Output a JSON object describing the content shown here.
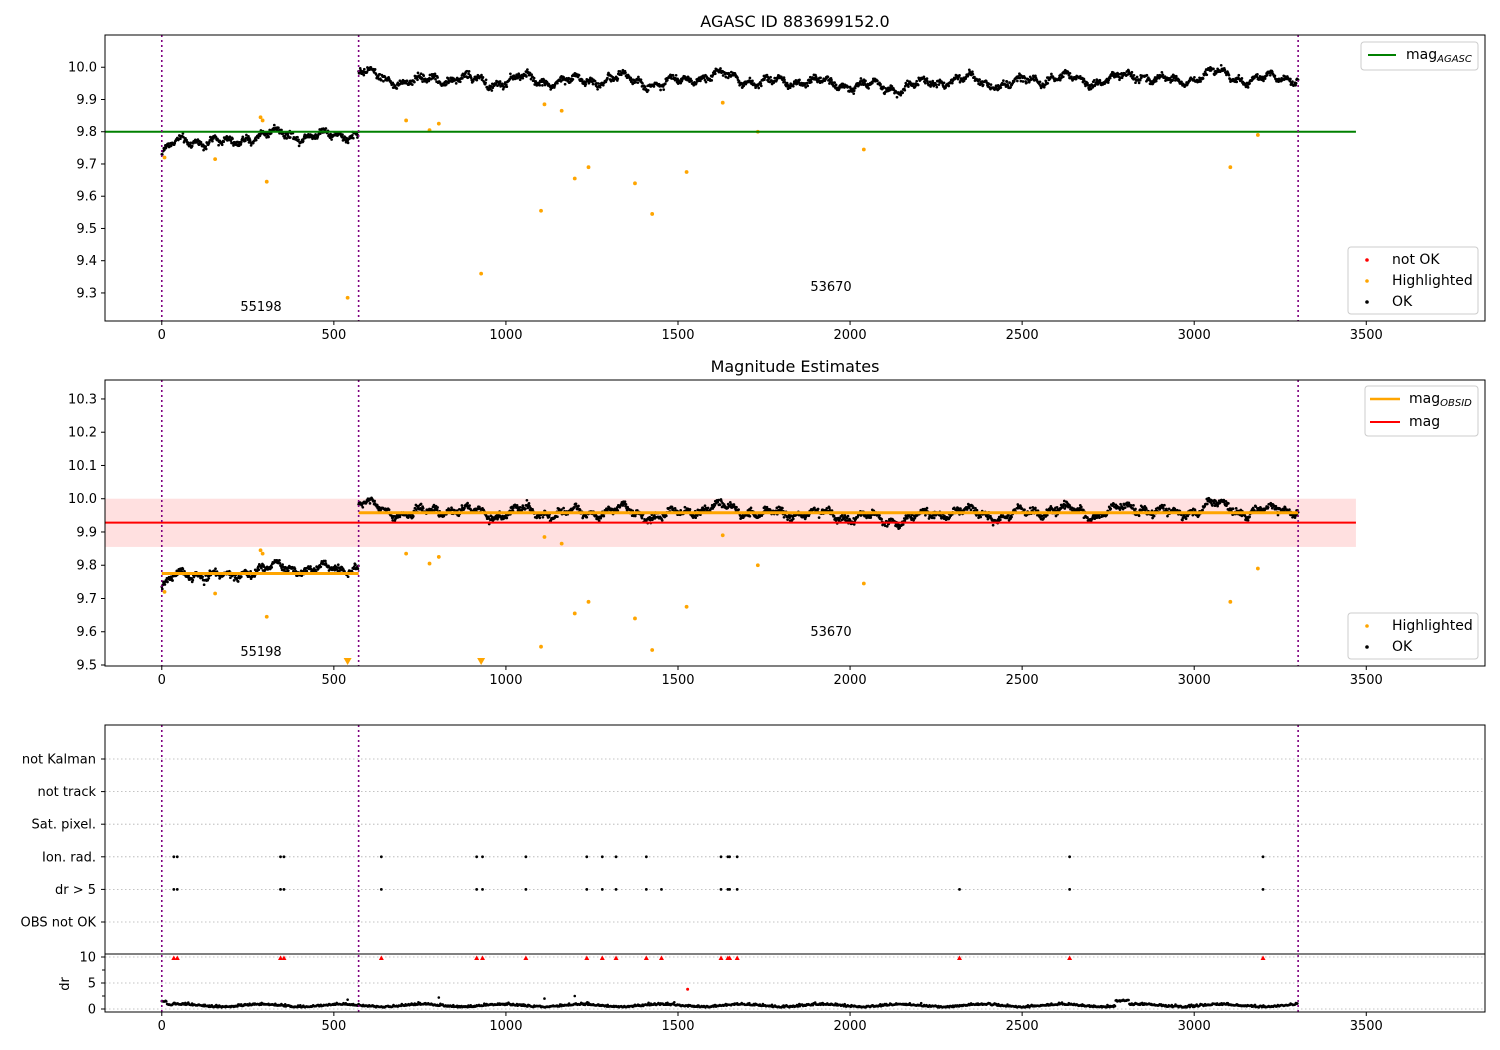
{
  "chart_data": [
    {
      "type": "scatter",
      "title": "AGASC ID 883699152.0",
      "xlim": [
        -165,
        3845
      ],
      "ylim": [
        9.213,
        10.1
      ],
      "xticks": [
        0,
        500,
        1000,
        1500,
        2000,
        2500,
        3000,
        3500
      ],
      "xtick_labels": [
        "0",
        "500",
        "1000",
        "1500",
        "2000",
        "2500",
        "3000",
        "3500"
      ],
      "yticks": [
        9.3,
        9.4,
        9.5,
        9.6,
        9.7,
        9.8,
        9.9,
        10.0
      ],
      "ytick_labels": [
        "9.3",
        "9.4",
        "9.5",
        "9.6",
        "9.7",
        "9.8",
        "9.9",
        "10.0"
      ],
      "obs_boundaries": [
        0,
        572,
        3302
      ],
      "obs_labels": [
        {
          "text": "55198",
          "x": 285,
          "y": 9.25
        },
        {
          "text": "53670",
          "x": 1937,
          "y": 9.3
        }
      ],
      "hlines": [
        {
          "name": "mag_AGASC",
          "y": 9.8,
          "x": [
            -165,
            3470
          ],
          "color": "#008000"
        }
      ],
      "series": [
        {
          "name": "not OK",
          "color": "#ff0000",
          "points": []
        },
        {
          "name": "Highlighted",
          "color": "#ffa500",
          "points": [
            [
              8,
              9.72
            ],
            [
              155,
              9.715
            ],
            [
              287,
              9.845
            ],
            [
              293,
              9.835
            ],
            [
              305,
              9.645
            ],
            [
              540,
              9.285
            ],
            [
              710,
              9.835
            ],
            [
              778,
              9.805
            ],
            [
              805,
              9.825
            ],
            [
              928,
              9.36
            ],
            [
              1102,
              9.555
            ],
            [
              1112,
              9.885
            ],
            [
              1162,
              9.865
            ],
            [
              1200,
              9.655
            ],
            [
              1240,
              9.69
            ],
            [
              1375,
              9.64
            ],
            [
              1425,
              9.545
            ],
            [
              1525,
              9.675
            ],
            [
              1630,
              9.89
            ],
            [
              1732,
              9.8
            ],
            [
              2040,
              9.745
            ],
            [
              3105,
              9.69
            ],
            [
              3185,
              9.79
            ]
          ]
        },
        {
          "name": "OK",
          "color": "#000000",
          "segments": [
            {
              "x0": 0,
              "x1": 572,
              "base": [
                [
                  0,
                  9.73
                ],
                [
                  40,
                  9.765
                ],
                [
                  100,
                  9.775
                ],
                [
                  150,
                  9.77
                ],
                [
                  200,
                  9.76
                ],
                [
                  250,
                  9.785
                ],
                [
                  300,
                  9.79
                ],
                [
                  350,
                  9.795
                ],
                [
                  400,
                  9.79
                ],
                [
                  450,
                  9.785
                ],
                [
                  500,
                  9.79
                ],
                [
                  572,
                  9.795
                ]
              ]
            },
            {
              "x0": 572,
              "x1": 3302,
              "base": [
                [
                  572,
                  9.99
                ],
                [
                  650,
                  9.96
                ],
                [
                  750,
                  9.955
                ],
                [
                  850,
                  9.97
                ],
                [
                  950,
                  9.95
                ],
                [
                  1050,
                  9.965
                ],
                [
                  1150,
                  9.955
                ],
                [
                  1250,
                  9.96
                ],
                [
                  1350,
                  9.965
                ],
                [
                  1450,
                  9.945
                ],
                [
                  1550,
                  9.97
                ],
                [
                  1650,
                  9.975
                ],
                [
                  1750,
                  9.95
                ],
                [
                  1850,
                  9.96
                ],
                [
                  2000,
                  9.945
                ],
                [
                  2150,
                  9.935
                ],
                [
                  2300,
                  9.965
                ],
                [
                  2450,
                  9.945
                ],
                [
                  2600,
                  9.97
                ],
                [
                  2700,
                  9.955
                ],
                [
                  2850,
                  9.975
                ],
                [
                  2950,
                  9.95
                ],
                [
                  3050,
                  9.985
                ],
                [
                  3150,
                  9.96
                ],
                [
                  3302,
                  9.97
                ]
              ]
            }
          ]
        }
      ],
      "legends": [
        {
          "items": [
            {
              "label": "mag",
              "sub": "AGASC",
              "color": "#008000",
              "kind": "line"
            }
          ]
        },
        {
          "items": [
            {
              "label": "not OK",
              "color": "#ff0000",
              "kind": "dot"
            },
            {
              "label": "Highlighted",
              "color": "#ffa500",
              "kind": "dot"
            },
            {
              "label": "OK",
              "color": "#000000",
              "kind": "dot"
            }
          ]
        }
      ]
    },
    {
      "type": "scatter",
      "title": "Magnitude Estimates",
      "xlim": [
        -165,
        3845
      ],
      "ylim": [
        9.497,
        10.357
      ],
      "xticks": [
        0,
        500,
        1000,
        1500,
        2000,
        2500,
        3000,
        3500
      ],
      "xtick_labels": [
        "0",
        "500",
        "1000",
        "1500",
        "2000",
        "2500",
        "3000",
        "3500"
      ],
      "yticks": [
        9.5,
        9.6,
        9.7,
        9.8,
        9.9,
        10.0,
        10.1,
        10.2,
        10.3
      ],
      "ytick_labels": [
        "9.5",
        "9.6",
        "9.7",
        "9.8",
        "9.9",
        "10.0",
        "10.1",
        "10.2",
        "10.3"
      ],
      "obs_boundaries": [
        0,
        572,
        3302
      ],
      "obs_labels": [
        {
          "text": "55198",
          "x": 285,
          "y": 9.53
        },
        {
          "text": "53670",
          "x": 1937,
          "y": 9.59
        }
      ],
      "band": {
        "y": [
          9.855,
          10.0
        ],
        "x": [
          -165,
          3470
        ],
        "color": "rgba(255,0,0,0.12)"
      },
      "hlines": [
        {
          "name": "mag",
          "y": 9.928,
          "x": [
            -165,
            3470
          ],
          "color": "#ff0000"
        },
        {
          "name": "mag_OBSID",
          "y": 9.775,
          "x": [
            0,
            572
          ],
          "color": "#ffa500"
        },
        {
          "name": "mag_OBSID",
          "y": 9.958,
          "x": [
            572,
            3302
          ],
          "color": "#ffa500"
        }
      ],
      "series": [
        {
          "name": "Highlighted",
          "color": "#ffa500",
          "points": [
            [
              8,
              9.72
            ],
            [
              155,
              9.715
            ],
            [
              287,
              9.845
            ],
            [
              293,
              9.835
            ],
            [
              305,
              9.645
            ],
            [
              710,
              9.835
            ],
            [
              778,
              9.805
            ],
            [
              805,
              9.825
            ],
            [
              1102,
              9.555
            ],
            [
              1112,
              9.885
            ],
            [
              1162,
              9.865
            ],
            [
              1200,
              9.655
            ],
            [
              1240,
              9.69
            ],
            [
              1375,
              9.64
            ],
            [
              1425,
              9.545
            ],
            [
              1525,
              9.675
            ],
            [
              1630,
              9.89
            ],
            [
              1732,
              9.8
            ],
            [
              2040,
              9.745
            ],
            [
              3105,
              9.69
            ],
            [
              3185,
              9.79
            ]
          ]
        },
        {
          "name": "Highlighted (below range)",
          "color": "#ffa500",
          "marker": "triangle-down",
          "points": [
            [
              540,
              9.503
            ],
            [
              928,
              9.503
            ]
          ]
        },
        {
          "name": "OK",
          "color": "#000000",
          "segments": [
            {
              "x0": 0,
              "x1": 572,
              "base": [
                [
                  0,
                  9.73
                ],
                [
                  40,
                  9.765
                ],
                [
                  100,
                  9.775
                ],
                [
                  150,
                  9.77
                ],
                [
                  200,
                  9.76
                ],
                [
                  250,
                  9.785
                ],
                [
                  300,
                  9.79
                ],
                [
                  350,
                  9.795
                ],
                [
                  400,
                  9.79
                ],
                [
                  450,
                  9.785
                ],
                [
                  500,
                  9.79
                ],
                [
                  572,
                  9.795
                ]
              ]
            },
            {
              "x0": 572,
              "x1": 3302,
              "base": [
                [
                  572,
                  9.99
                ],
                [
                  650,
                  9.96
                ],
                [
                  750,
                  9.955
                ],
                [
                  850,
                  9.97
                ],
                [
                  950,
                  9.95
                ],
                [
                  1050,
                  9.965
                ],
                [
                  1150,
                  9.955
                ],
                [
                  1250,
                  9.96
                ],
                [
                  1350,
                  9.965
                ],
                [
                  1450,
                  9.945
                ],
                [
                  1550,
                  9.97
                ],
                [
                  1650,
                  9.975
                ],
                [
                  1750,
                  9.95
                ],
                [
                  1850,
                  9.96
                ],
                [
                  2000,
                  9.945
                ],
                [
                  2150,
                  9.935
                ],
                [
                  2300,
                  9.965
                ],
                [
                  2450,
                  9.945
                ],
                [
                  2600,
                  9.97
                ],
                [
                  2700,
                  9.955
                ],
                [
                  2850,
                  9.975
                ],
                [
                  2950,
                  9.95
                ],
                [
                  3050,
                  9.985
                ],
                [
                  3150,
                  9.96
                ],
                [
                  3302,
                  9.97
                ]
              ]
            }
          ]
        }
      ],
      "legends": [
        {
          "items": [
            {
              "label": "mag",
              "sub": "OBSID",
              "color": "#ffa500",
              "kind": "line"
            },
            {
              "label": "mag",
              "color": "#ff0000",
              "kind": "line"
            }
          ]
        },
        {
          "items": [
            {
              "label": "Highlighted",
              "color": "#ffa500",
              "kind": "dot"
            },
            {
              "label": "OK",
              "color": "#000000",
              "kind": "dot"
            }
          ]
        }
      ]
    },
    {
      "type": "scatter",
      "title": "",
      "xlim": [
        -165,
        3845
      ],
      "xticks": [
        0,
        500,
        1000,
        1500,
        2000,
        2500,
        3000,
        3500
      ],
      "xtick_labels": [
        "0",
        "500",
        "1000",
        "1500",
        "2000",
        "2500",
        "3000",
        "3500"
      ],
      "obs_boundaries": [
        0,
        572,
        3302
      ],
      "flag_rows": [
        "not Kalman",
        "not track",
        "Sat. pixel.",
        "Ion. rad.",
        "dr > 5",
        "OBS not OK"
      ],
      "flag_points": {
        "Ion. rad.": [
          35,
          45,
          345,
          355,
          638,
          915,
          932,
          1058,
          1235,
          1280,
          1320,
          1408,
          1625,
          1645,
          1650,
          1672,
          2638,
          3200
        ],
        "dr > 5": [
          35,
          45,
          345,
          355,
          638,
          915,
          932,
          1058,
          1235,
          1280,
          1320,
          1408,
          1452,
          1625,
          1645,
          1650,
          1672,
          2318,
          2638,
          3200
        ]
      },
      "dr": {
        "ylabel": "dr",
        "yticks": [
          0,
          5,
          10
        ],
        "ytick_labels": [
          "0",
          "5",
          "10"
        ],
        "ylim": [
          -0.3,
          10.6
        ],
        "high_red": [
          35,
          45,
          345,
          355,
          638,
          915,
          932,
          1058,
          1235,
          1280,
          1320,
          1408,
          1452,
          1625,
          1645,
          1650,
          1672,
          2318,
          2638,
          3200
        ],
        "red_single": [
          [
            1528,
            3.8
          ]
        ]
      }
    }
  ]
}
